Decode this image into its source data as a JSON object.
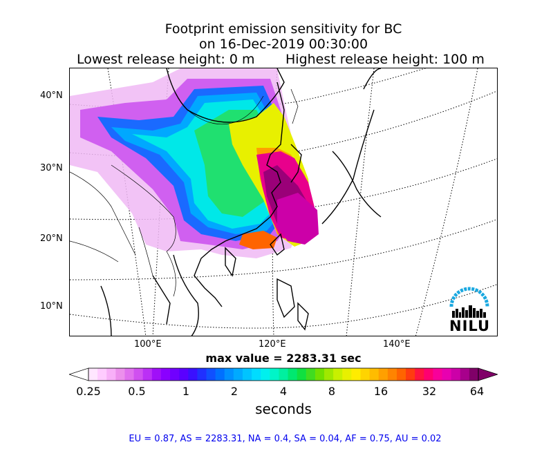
{
  "title": {
    "line1": "Footprint emission sensitivity for BC",
    "line2": "on 16-Dec-2019 00:30:00"
  },
  "release": {
    "lowest": "Lowest release height: 0 m",
    "highest": "Highest release height: 100 m"
  },
  "map": {
    "lat_labels": [
      "40°N",
      "30°N",
      "20°N",
      "10°N"
    ],
    "lon_labels": [
      "100°E",
      "120°E",
      "140°E"
    ]
  },
  "max_value": "max value = 2283.31 sec",
  "colorbar": {
    "ticks": [
      "0.25",
      "0.5",
      "1",
      "2",
      "4",
      "8",
      "16",
      "32",
      "64"
    ],
    "unit": "seconds",
    "colors": [
      "#ffe6ff",
      "#ffccff",
      "#f8b0f8",
      "#ec90ec",
      "#e070ee",
      "#d050f0",
      "#bb30f5",
      "#a010f8",
      "#8a00ff",
      "#7000ff",
      "#5a00ff",
      "#3a10ff",
      "#2030ff",
      "#1050ff",
      "#0070ff",
      "#0090ff",
      "#00aaff",
      "#00c4ff",
      "#00dcff",
      "#00f0ee",
      "#00f5c8",
      "#00f0a0",
      "#00e870",
      "#10e040",
      "#40dc20",
      "#70e000",
      "#a0e800",
      "#c8f000",
      "#e8f000",
      "#ffec00",
      "#ffd400",
      "#ffbc00",
      "#ffa000",
      "#ff8400",
      "#ff6400",
      "#ff3c10",
      "#ff1440",
      "#ff0070",
      "#f8009a",
      "#e800b0",
      "#cc00a8",
      "#a8008c",
      "#800068"
    ]
  },
  "regional_values": "EU = 0.87,  AS = 2283.31,  NA = 0.4,  SA = 0.04,  AF = 0.75,  AU = 0.02",
  "logo": {
    "text": "NILU",
    "arc_color": "#1aa8e0"
  }
}
